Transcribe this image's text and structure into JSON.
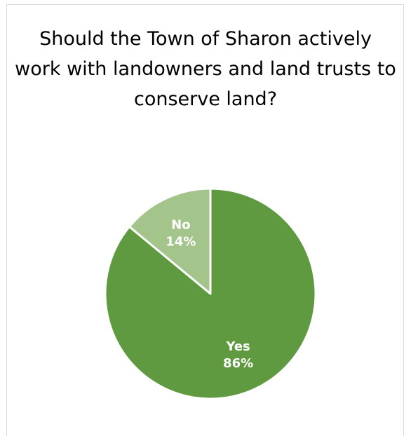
{
  "chart_data": {
    "type": "pie",
    "title": "Should the Town of Sharon actively work with landowners and land trusts to conserve land?",
    "slices": [
      {
        "category": "Yes",
        "value": 86,
        "value_label": "86%",
        "color": "#5f9a40"
      },
      {
        "category": "No",
        "value": 14,
        "value_label": "14%",
        "color": "#a3c48b"
      }
    ],
    "legend": "none",
    "slice_border_color": "#ffffff"
  }
}
